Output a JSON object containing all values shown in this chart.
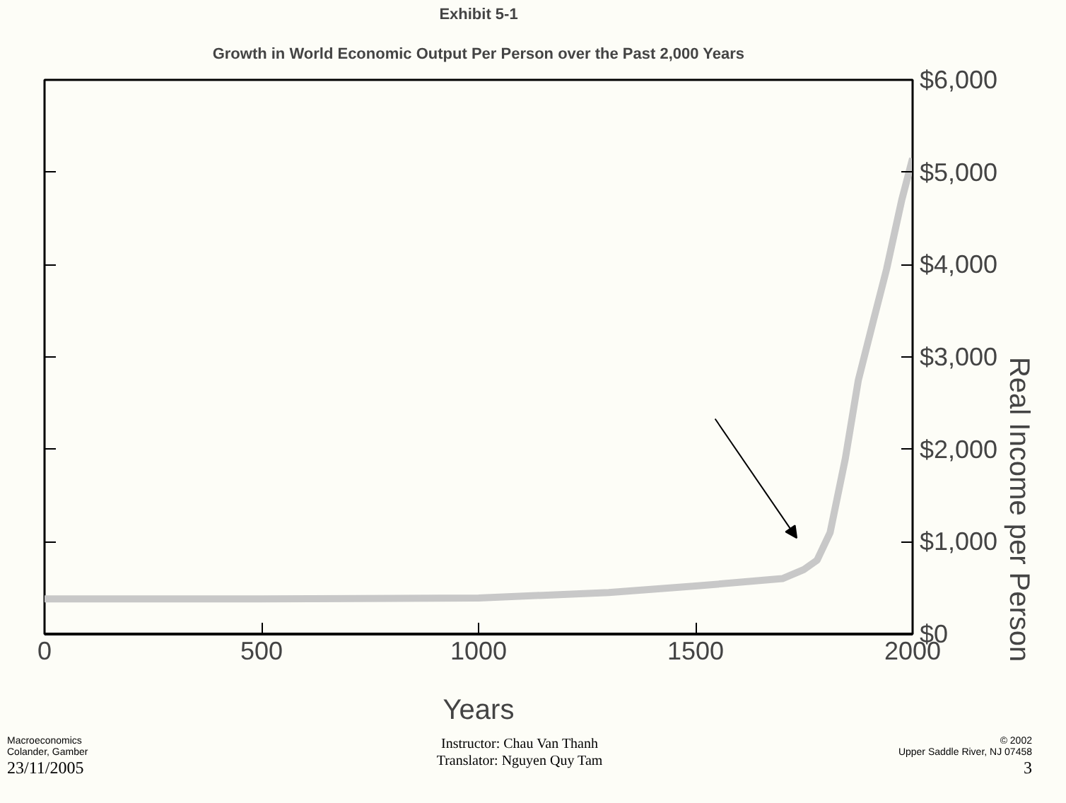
{
  "chart_data": {
    "type": "line",
    "title": "Exhibit 5-1",
    "subtitle": "Growth in World Economic Output Per Person over the Past 2,000 Years",
    "xlabel": "Years",
    "ylabel": "Real Income per Person",
    "x": [
      0,
      500,
      1000,
      1300,
      1500,
      1700,
      1750,
      1780,
      1810,
      1845,
      1875,
      1910,
      1940,
      1975,
      2000
    ],
    "series": [
      {
        "color": "#c8c8c8",
        "values": [
          380,
          380,
          390,
          450,
          520,
          600,
          700,
          800,
          1100,
          1900,
          2750,
          3400,
          3950,
          4700,
          5150
        ]
      }
    ],
    "xlim": [
      0,
      2000
    ],
    "xticks": [
      0,
      500,
      1000,
      1500,
      2000
    ],
    "ylim": [
      0,
      6000
    ],
    "yticks": [
      {
        "value": 0,
        "label": "$0"
      },
      {
        "value": 1000,
        "label": "$1,000"
      },
      {
        "value": 2000,
        "label": "$2,000"
      },
      {
        "value": 3000,
        "label": "$3,000"
      },
      {
        "value": 4000,
        "label": "$4,000"
      },
      {
        "value": 5000,
        "label": "$5,000"
      },
      {
        "value": 6000,
        "label": "$6,000"
      }
    ],
    "grid": false,
    "marker": "none",
    "line_style": "solid",
    "annotations": [
      "Macroeconomics",
      "Colander, Gamber",
      "23/11/2005",
      "Instructor: Chau Van Thanh",
      "Translator: Nguyen Quy Tam",
      "© 2002",
      "Upper Saddle River, NJ 07458",
      "3"
    ]
  }
}
